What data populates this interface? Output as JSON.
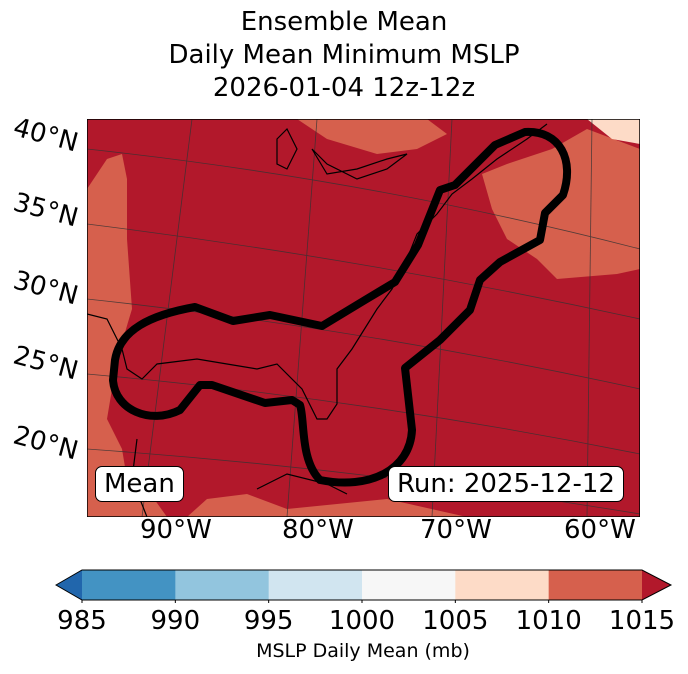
{
  "title": {
    "line1": "Ensemble Mean",
    "line2": "Daily Mean Minimum MSLP",
    "line3": "2026-01-04 12z-12z"
  },
  "map": {
    "lat_labels": [
      "40°N",
      "35°N",
      "30°N",
      "25°N",
      "20°N"
    ],
    "lon_labels": [
      "90°W",
      "80°W",
      "70°W",
      "60°W"
    ],
    "mean_label": "Mean",
    "run_label": "Run: 2025-12-12",
    "dominant_range_mb": "1010-1015+",
    "contour_color": "#000000"
  },
  "colorbar": {
    "ticks": [
      "985",
      "990",
      "995",
      "1000",
      "1005",
      "1010",
      "1015"
    ],
    "colors": [
      "#2166ac",
      "#4393c3",
      "#92c5de",
      "#d1e5f0",
      "#f7f7f7",
      "#fddbc7",
      "#d6604d",
      "#b2182b"
    ],
    "label": "MSLP Daily Mean (mb)"
  }
}
